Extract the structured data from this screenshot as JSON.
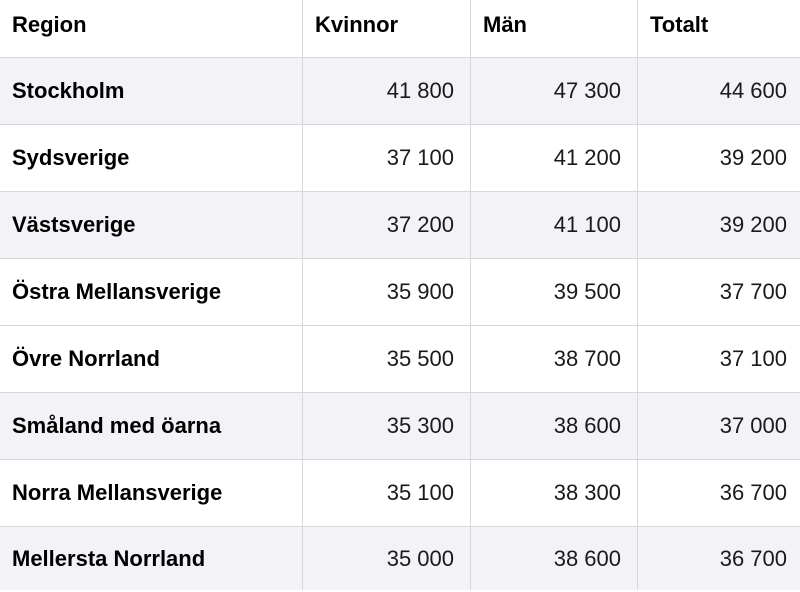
{
  "headers": {
    "region": "Region",
    "women": "Kvinnor",
    "men": "Män",
    "total": "Totalt"
  },
  "rows": [
    {
      "region": "Stockholm",
      "women": "41 800",
      "men": "47 300",
      "total": "44 600"
    },
    {
      "region": "Sydsverige",
      "women": "37 100",
      "men": "41 200",
      "total": "39 200"
    },
    {
      "region": "Västsverige",
      "women": "37 200",
      "men": "41 100",
      "total": "39 200"
    },
    {
      "region": "Östra Mellansverige",
      "women": "35 900",
      "men": "39 500",
      "total": "37 700"
    },
    {
      "region": "Övre Norrland",
      "women": "35 500",
      "men": "38 700",
      "total": "37 100"
    },
    {
      "region": "Småland med öarna",
      "women": "35 300",
      "men": "38 600",
      "total": "37 000"
    },
    {
      "region": "Norra Mellansverige",
      "women": "35 100",
      "men": "38 300",
      "total": "36 700"
    },
    {
      "region": "Mellersta Norrland",
      "women": "35 000",
      "men": "38 600",
      "total": "36 700"
    }
  ],
  "colors": {
    "stripe": "#f2f2f7",
    "border": "#d7d7dc",
    "text": "#000000"
  }
}
